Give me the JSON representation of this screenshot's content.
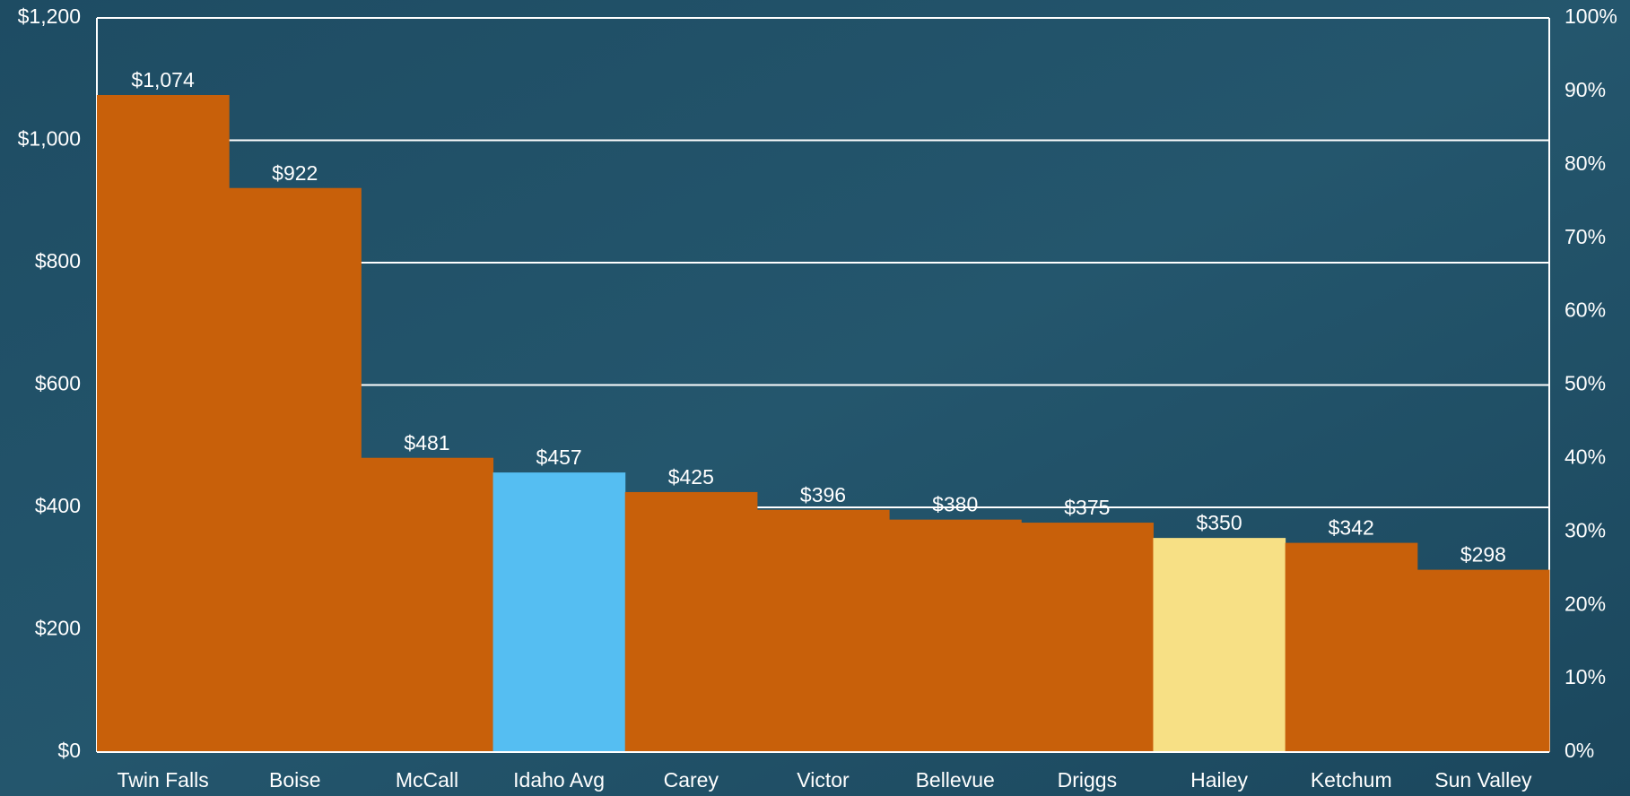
{
  "chart_data": {
    "type": "bar",
    "categories": [
      "Twin Falls",
      "Boise",
      "McCall",
      "Idaho Avg",
      "Carey",
      "Victor",
      "Bellevue",
      "Driggs",
      "Hailey",
      "Ketchum",
      "Sun Valley"
    ],
    "values": [
      1074,
      922,
      481,
      457,
      425,
      396,
      380,
      375,
      350,
      342,
      298
    ],
    "value_labels": [
      "$1,074",
      "$922",
      "$481",
      "$457",
      "$425",
      "$396",
      "$380",
      "$375",
      "$350",
      "$342",
      "$298"
    ],
    "colors": [
      "#c8600a",
      "#c8600a",
      "#c8600a",
      "#55bef2",
      "#c8600a",
      "#c8600a",
      "#c8600a",
      "#c8600a",
      "#f7e085",
      "#c8600a",
      "#c8600a"
    ],
    "ylim": [
      0,
      1200
    ],
    "yticks": [
      {
        "value": 0,
        "label": "$0"
      },
      {
        "value": 200,
        "label": "$200"
      },
      {
        "value": 400,
        "label": "$400"
      },
      {
        "value": 600,
        "label": "$600"
      },
      {
        "value": 800,
        "label": "$800"
      },
      {
        "value": 1000,
        "label": "$1,000"
      },
      {
        "value": 1200,
        "label": "$1,200"
      }
    ],
    "y2lim": [
      0,
      100
    ],
    "y2ticks": [
      {
        "value": 0,
        "label": "0%"
      },
      {
        "value": 10,
        "label": "10%"
      },
      {
        "value": 20,
        "label": "20%"
      },
      {
        "value": 30,
        "label": "30%"
      },
      {
        "value": 40,
        "label": "40%"
      },
      {
        "value": 50,
        "label": "50%"
      },
      {
        "value": 60,
        "label": "60%"
      },
      {
        "value": 70,
        "label": "70%"
      },
      {
        "value": 80,
        "label": "80%"
      },
      {
        "value": 90,
        "label": "90%"
      },
      {
        "value": 100,
        "label": "100%"
      }
    ],
    "grid": true
  }
}
